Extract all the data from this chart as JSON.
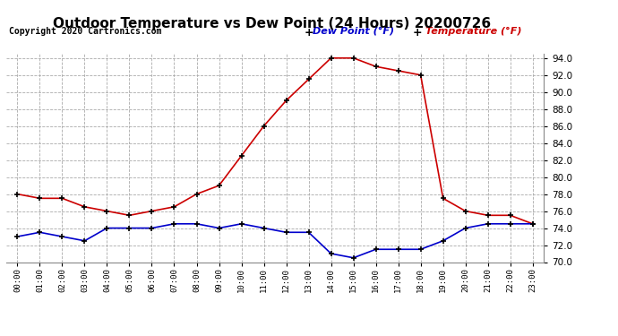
{
  "title": "Outdoor Temperature vs Dew Point (24 Hours) 20200726",
  "copyright_text": "Copyright 2020 Cartronics.com",
  "legend_dew": "Dew Point (°F)",
  "legend_temp": "Temperature (°F)",
  "hours": [
    "00:00",
    "01:00",
    "02:00",
    "03:00",
    "04:00",
    "05:00",
    "06:00",
    "07:00",
    "08:00",
    "09:00",
    "10:00",
    "11:00",
    "12:00",
    "13:00",
    "14:00",
    "15:00",
    "16:00",
    "17:00",
    "18:00",
    "19:00",
    "20:00",
    "21:00",
    "22:00",
    "23:00"
  ],
  "temperature": [
    78.0,
    77.5,
    77.5,
    76.5,
    76.0,
    75.5,
    76.0,
    76.5,
    78.0,
    79.0,
    82.5,
    86.0,
    89.0,
    91.5,
    94.0,
    94.0,
    93.0,
    92.5,
    92.0,
    77.5,
    76.0,
    75.5,
    75.5,
    74.5
  ],
  "dew_point": [
    73.0,
    73.5,
    73.0,
    72.5,
    74.0,
    74.0,
    74.0,
    74.5,
    74.5,
    74.0,
    74.5,
    74.0,
    73.5,
    73.5,
    71.0,
    70.5,
    71.5,
    71.5,
    71.5,
    72.5,
    74.0,
    74.5,
    74.5,
    74.5
  ],
  "temp_color": "#cc0000",
  "dew_color": "#0000cc",
  "ylim_min": 70.0,
  "ylim_max": 94.5,
  "yticks": [
    70.0,
    72.0,
    74.0,
    76.0,
    78.0,
    80.0,
    82.0,
    84.0,
    86.0,
    88.0,
    90.0,
    92.0,
    94.0
  ],
  "background_color": "#ffffff",
  "grid_color": "#aaaaaa",
  "title_fontsize": 11,
  "copyright_fontsize": 7,
  "marker": "+",
  "marker_color": "#000000",
  "marker_size": 5,
  "linewidth": 1.2
}
